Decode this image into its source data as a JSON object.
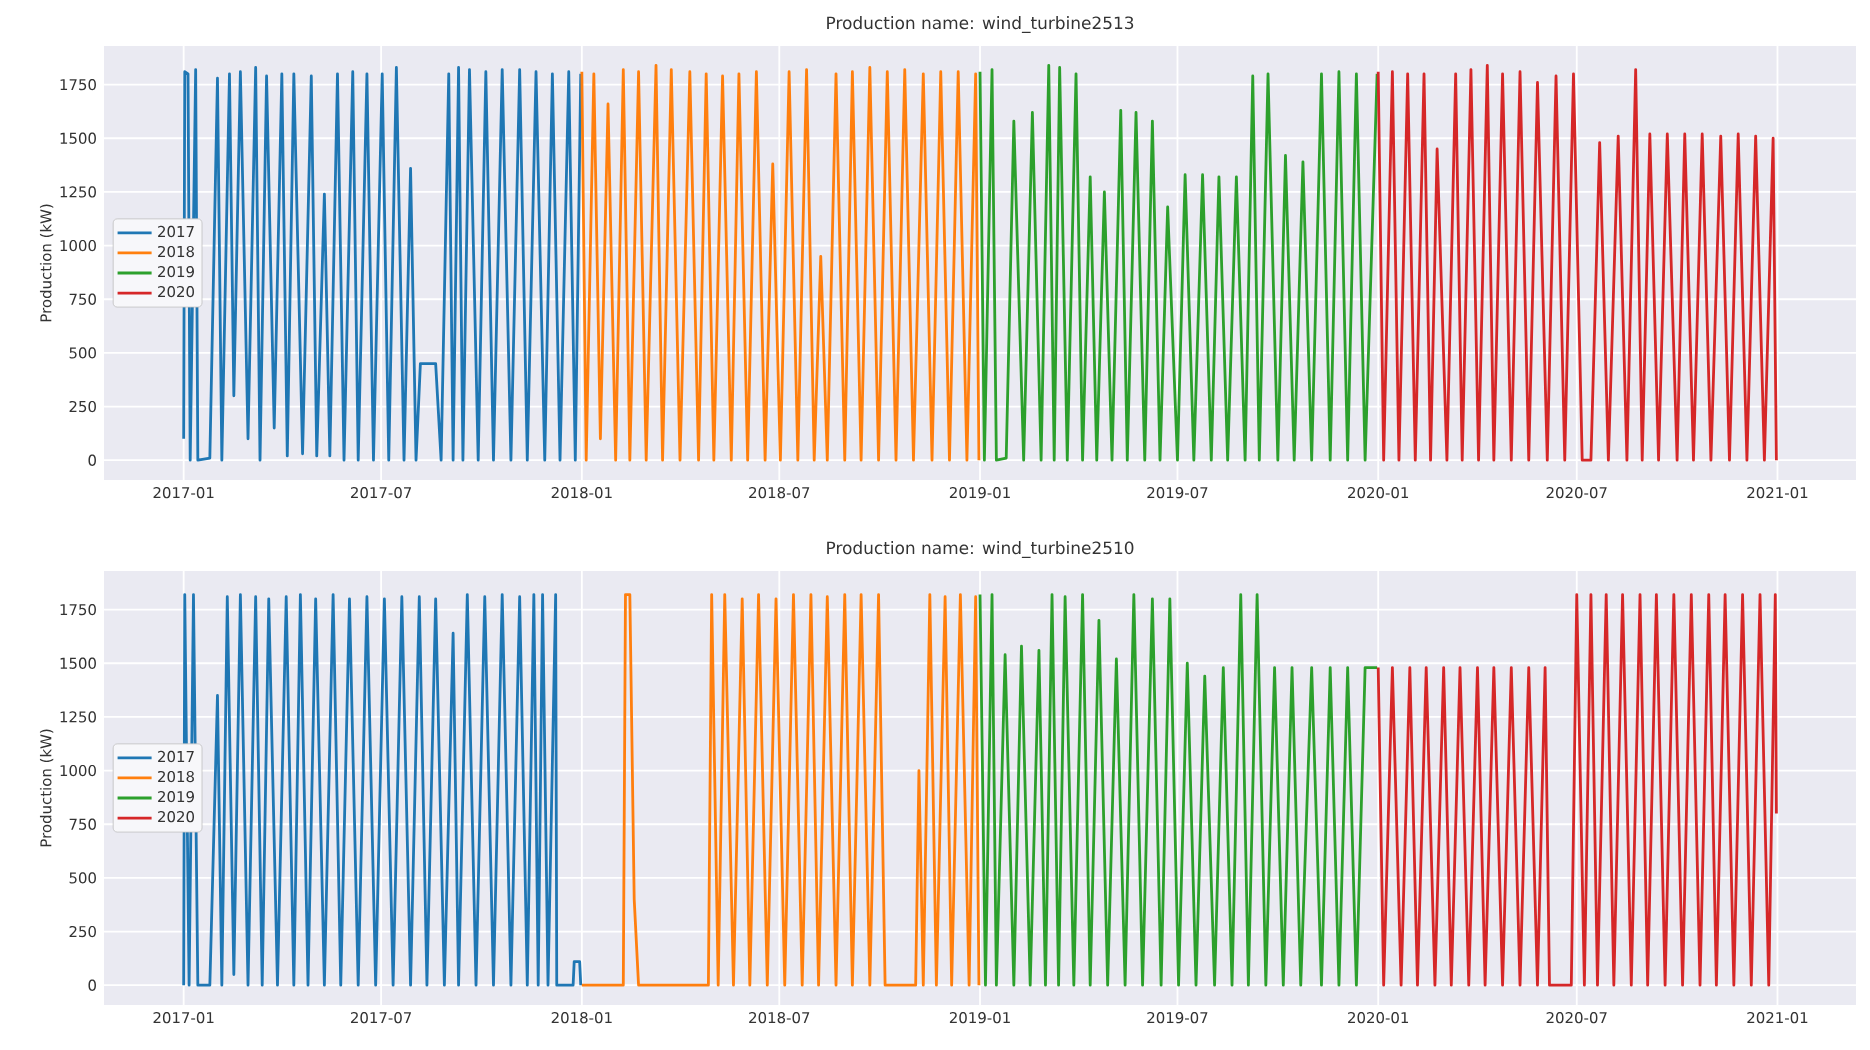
{
  "chart_data": [
    {
      "type": "line",
      "title": "Production name: wind_turbine2513",
      "ylabel": "Production (kW)",
      "grid": true,
      "legend": "left",
      "xlim": [
        "2016-10-20",
        "2021-03-14"
      ],
      "ylim": [
        -92,
        1930
      ],
      "xticks": [
        "2017-01",
        "2017-07",
        "2018-01",
        "2018-07",
        "2019-01",
        "2019-07",
        "2020-01",
        "2020-07",
        "2021-01"
      ],
      "yticks": [
        0,
        250,
        500,
        750,
        1000,
        1250,
        1500,
        1750
      ],
      "series": [
        {
          "name": "2017",
          "color": "#1f77b4",
          "x": [
            "2017-01-01",
            "2017-01-02",
            "2017-01-05",
            "2017-01-07",
            "2017-01-12",
            "2017-01-14",
            "2017-01-25",
            "2017-02-01",
            "2017-02-05",
            "2017-02-12",
            "2017-02-16",
            "2017-02-22",
            "2017-03-01",
            "2017-03-08",
            "2017-03-12",
            "2017-03-18",
            "2017-03-25",
            "2017-04-01",
            "2017-04-06",
            "2017-04-12",
            "2017-04-20",
            "2017-04-28",
            "2017-05-03",
            "2017-05-10",
            "2017-05-15",
            "2017-05-22",
            "2017-05-28",
            "2017-06-05",
            "2017-06-10",
            "2017-06-18",
            "2017-06-24",
            "2017-07-02",
            "2017-07-08",
            "2017-07-15",
            "2017-07-22",
            "2017-07-28",
            "2017-08-02",
            "2017-08-06",
            "2017-08-20",
            "2017-08-25",
            "2017-09-01",
            "2017-09-05",
            "2017-09-10",
            "2017-09-14",
            "2017-09-20",
            "2017-09-28",
            "2017-10-05",
            "2017-10-12",
            "2017-10-20",
            "2017-10-28",
            "2017-11-05",
            "2017-11-12",
            "2017-11-20",
            "2017-11-28",
            "2017-12-05",
            "2017-12-12",
            "2017-12-20",
            "2017-12-26",
            "2017-12-31"
          ],
          "values": [
            100,
            1810,
            1800,
            0,
            1820,
            0,
            10,
            1780,
            0,
            1800,
            300,
            1810,
            100,
            1830,
            0,
            1790,
            150,
            1800,
            20,
            1800,
            30,
            1790,
            20,
            1240,
            20,
            1800,
            0,
            1810,
            0,
            1800,
            0,
            1800,
            0,
            1830,
            0,
            1360,
            0,
            450,
            450,
            0,
            1800,
            0,
            1830,
            0,
            1820,
            0,
            1810,
            0,
            1820,
            0,
            1820,
            0,
            1810,
            0,
            1800,
            0,
            1810,
            0,
            1800
          ]
        },
        {
          "name": "2018",
          "color": "#ff7f0e",
          "x": [
            "2018-01-01",
            "2018-01-05",
            "2018-01-12",
            "2018-01-18",
            "2018-01-25",
            "2018-02-01",
            "2018-02-08",
            "2018-02-14",
            "2018-02-22",
            "2018-03-01",
            "2018-03-10",
            "2018-03-16",
            "2018-03-24",
            "2018-04-01",
            "2018-04-10",
            "2018-04-18",
            "2018-04-25",
            "2018-05-02",
            "2018-05-10",
            "2018-05-18",
            "2018-05-25",
            "2018-06-02",
            "2018-06-10",
            "2018-06-18",
            "2018-06-25",
            "2018-07-02",
            "2018-07-10",
            "2018-07-18",
            "2018-07-26",
            "2018-08-02",
            "2018-08-08",
            "2018-08-14",
            "2018-08-22",
            "2018-08-30",
            "2018-09-06",
            "2018-09-14",
            "2018-09-22",
            "2018-09-30",
            "2018-10-08",
            "2018-10-16",
            "2018-10-24",
            "2018-11-01",
            "2018-11-10",
            "2018-11-18",
            "2018-11-26",
            "2018-12-04",
            "2018-12-12",
            "2018-12-20",
            "2018-12-28",
            "2018-12-31"
          ],
          "values": [
            1810,
            0,
            1800,
            100,
            1660,
            0,
            1820,
            0,
            1810,
            0,
            1840,
            0,
            1820,
            0,
            1810,
            0,
            1800,
            0,
            1790,
            0,
            1800,
            0,
            1810,
            0,
            1380,
            0,
            1810,
            0,
            1820,
            0,
            950,
            0,
            1800,
            0,
            1810,
            0,
            1830,
            0,
            1810,
            0,
            1820,
            0,
            1800,
            0,
            1810,
            0,
            1810,
            0,
            1800,
            0
          ]
        },
        {
          "name": "2019",
          "color": "#2ca02c",
          "x": [
            "2019-01-01",
            "2019-01-05",
            "2019-01-12",
            "2019-01-16",
            "2019-01-25",
            "2019-02-01",
            "2019-02-10",
            "2019-02-18",
            "2019-02-26",
            "2019-03-05",
            "2019-03-10",
            "2019-03-15",
            "2019-03-22",
            "2019-03-30",
            "2019-04-05",
            "2019-04-12",
            "2019-04-18",
            "2019-04-25",
            "2019-05-02",
            "2019-05-10",
            "2019-05-16",
            "2019-05-24",
            "2019-06-01",
            "2019-06-08",
            "2019-06-15",
            "2019-06-22",
            "2019-07-01",
            "2019-07-08",
            "2019-07-16",
            "2019-07-24",
            "2019-08-01",
            "2019-08-08",
            "2019-08-16",
            "2019-08-24",
            "2019-09-01",
            "2019-09-08",
            "2019-09-14",
            "2019-09-22",
            "2019-10-01",
            "2019-10-08",
            "2019-10-16",
            "2019-10-24",
            "2019-11-01",
            "2019-11-10",
            "2019-11-18",
            "2019-11-26",
            "2019-12-04",
            "2019-12-12",
            "2019-12-20",
            "2019-12-31"
          ],
          "values": [
            1810,
            0,
            1820,
            0,
            10,
            1580,
            0,
            1620,
            0,
            1840,
            0,
            1830,
            0,
            1800,
            0,
            1320,
            0,
            1250,
            0,
            1630,
            0,
            1620,
            0,
            1580,
            0,
            1180,
            0,
            1330,
            0,
            1330,
            0,
            1320,
            0,
            1320,
            0,
            1790,
            0,
            1800,
            0,
            1420,
            0,
            1390,
            0,
            1800,
            0,
            1810,
            0,
            1800,
            0,
            1800
          ]
        },
        {
          "name": "2020",
          "color": "#d62728",
          "x": [
            "2020-01-01",
            "2020-01-06",
            "2020-01-14",
            "2020-01-20",
            "2020-01-28",
            "2020-02-04",
            "2020-02-12",
            "2020-02-18",
            "2020-02-24",
            "2020-03-04",
            "2020-03-12",
            "2020-03-18",
            "2020-03-26",
            "2020-04-02",
            "2020-04-10",
            "2020-04-16",
            "2020-04-24",
            "2020-05-02",
            "2020-05-10",
            "2020-05-18",
            "2020-05-26",
            "2020-06-04",
            "2020-06-12",
            "2020-06-20",
            "2020-06-28",
            "2020-07-06",
            "2020-07-14",
            "2020-07-22",
            "2020-07-30",
            "2020-08-08",
            "2020-08-16",
            "2020-08-24",
            "2020-08-30",
            "2020-09-06",
            "2020-09-14",
            "2020-09-22",
            "2020-10-01",
            "2020-10-08",
            "2020-10-16",
            "2020-10-24",
            "2020-11-01",
            "2020-11-10",
            "2020-11-18",
            "2020-11-26",
            "2020-12-04",
            "2020-12-12",
            "2020-12-20",
            "2020-12-28",
            "2020-12-31"
          ],
          "values": [
            1810,
            0,
            1810,
            0,
            1800,
            0,
            1800,
            0,
            1450,
            0,
            1800,
            0,
            1820,
            0,
            1840,
            0,
            1800,
            0,
            1810,
            0,
            1760,
            0,
            1790,
            0,
            1800,
            0,
            0,
            1480,
            0,
            1510,
            0,
            1820,
            0,
            1520,
            0,
            1520,
            0,
            1520,
            0,
            1520,
            0,
            1510,
            0,
            1520,
            0,
            1510,
            0,
            1500,
            0
          ]
        }
      ]
    },
    {
      "type": "line",
      "title": "Production name: wind_turbine2510",
      "ylabel": "Production (kW)",
      "grid": true,
      "legend": "left",
      "xlim": [
        "2016-10-20",
        "2021-03-14"
      ],
      "ylim": [
        -92,
        1930
      ],
      "xticks": [
        "2017-01",
        "2017-07",
        "2018-01",
        "2018-07",
        "2019-01",
        "2019-07",
        "2020-01",
        "2020-07",
        "2021-01"
      ],
      "yticks": [
        0,
        250,
        500,
        750,
        1000,
        1250,
        1500,
        1750
      ],
      "series": [
        {
          "name": "2017",
          "color": "#1f77b4",
          "x": [
            "2017-01-01",
            "2017-01-02",
            "2017-01-06",
            "2017-01-10",
            "2017-01-14",
            "2017-01-25",
            "2017-02-01",
            "2017-02-05",
            "2017-02-10",
            "2017-02-16",
            "2017-02-22",
            "2017-03-01",
            "2017-03-08",
            "2017-03-14",
            "2017-03-20",
            "2017-03-28",
            "2017-04-05",
            "2017-04-12",
            "2017-04-18",
            "2017-04-25",
            "2017-05-02",
            "2017-05-10",
            "2017-05-18",
            "2017-05-25",
            "2017-06-02",
            "2017-06-10",
            "2017-06-18",
            "2017-06-26",
            "2017-07-04",
            "2017-07-12",
            "2017-07-20",
            "2017-07-28",
            "2017-08-05",
            "2017-08-12",
            "2017-08-20",
            "2017-08-28",
            "2017-09-05",
            "2017-09-10",
            "2017-09-18",
            "2017-09-26",
            "2017-10-04",
            "2017-10-12",
            "2017-10-20",
            "2017-10-28",
            "2017-11-05",
            "2017-11-12",
            "2017-11-18",
            "2017-11-22",
            "2017-11-26",
            "2017-12-01",
            "2017-12-08",
            "2017-12-09",
            "2017-12-24",
            "2017-12-25",
            "2017-12-30",
            "2017-12-31"
          ],
          "values": [
            0,
            1820,
            0,
            1820,
            0,
            0,
            1350,
            0,
            1810,
            50,
            1820,
            0,
            1810,
            0,
            1800,
            0,
            1810,
            0,
            1820,
            0,
            1800,
            0,
            1820,
            0,
            1800,
            0,
            1810,
            0,
            1800,
            0,
            1810,
            0,
            1810,
            0,
            1800,
            0,
            1640,
            0,
            1820,
            0,
            1810,
            0,
            1820,
            0,
            1810,
            0,
            1820,
            0,
            1820,
            0,
            1820,
            0,
            0,
            110,
            110,
            0
          ]
        },
        {
          "name": "2018",
          "color": "#ff7f0e",
          "x": [
            "2018-01-01",
            "2018-02-08",
            "2018-02-10",
            "2018-02-14",
            "2018-02-18",
            "2018-02-22",
            "2018-04-27",
            "2018-04-30",
            "2018-05-06",
            "2018-05-12",
            "2018-05-20",
            "2018-05-28",
            "2018-06-04",
            "2018-06-12",
            "2018-06-20",
            "2018-06-28",
            "2018-07-06",
            "2018-07-14",
            "2018-07-22",
            "2018-07-30",
            "2018-08-06",
            "2018-08-14",
            "2018-08-22",
            "2018-08-30",
            "2018-09-06",
            "2018-09-14",
            "2018-09-22",
            "2018-09-30",
            "2018-10-06",
            "2018-11-03",
            "2018-11-06",
            "2018-11-10",
            "2018-11-16",
            "2018-11-22",
            "2018-11-30",
            "2018-12-06",
            "2018-12-14",
            "2018-12-22",
            "2018-12-28",
            "2018-12-31"
          ],
          "values": [
            0,
            0,
            1820,
            1820,
            400,
            0,
            0,
            1820,
            0,
            1820,
            0,
            1800,
            0,
            1820,
            0,
            1800,
            0,
            1820,
            0,
            1820,
            0,
            1810,
            0,
            1820,
            0,
            1820,
            0,
            1820,
            0,
            0,
            1000,
            0,
            1820,
            0,
            1810,
            0,
            1820,
            0,
            1810,
            0
          ]
        },
        {
          "name": "2019",
          "color": "#2ca02c",
          "x": [
            "2019-01-01",
            "2019-01-06",
            "2019-01-12",
            "2019-01-16",
            "2019-01-24",
            "2019-02-01",
            "2019-02-08",
            "2019-02-16",
            "2019-02-24",
            "2019-03-02",
            "2019-03-08",
            "2019-03-14",
            "2019-03-20",
            "2019-03-28",
            "2019-04-05",
            "2019-04-12",
            "2019-04-20",
            "2019-04-28",
            "2019-05-06",
            "2019-05-14",
            "2019-05-22",
            "2019-05-30",
            "2019-06-08",
            "2019-06-16",
            "2019-06-24",
            "2019-07-02",
            "2019-07-10",
            "2019-07-18",
            "2019-07-26",
            "2019-08-04",
            "2019-08-12",
            "2019-08-20",
            "2019-08-28",
            "2019-09-04",
            "2019-09-12",
            "2019-09-20",
            "2019-09-28",
            "2019-10-06",
            "2019-10-14",
            "2019-10-22",
            "2019-11-01",
            "2019-11-10",
            "2019-11-18",
            "2019-11-26",
            "2019-12-04",
            "2019-12-12",
            "2019-12-20",
            "2019-12-31"
          ],
          "values": [
            1820,
            0,
            1820,
            0,
            1540,
            0,
            1580,
            0,
            1560,
            0,
            1820,
            0,
            1810,
            0,
            1820,
            0,
            1700,
            0,
            1520,
            0,
            1820,
            0,
            1800,
            0,
            1800,
            0,
            1500,
            0,
            1440,
            0,
            1480,
            0,
            1820,
            0,
            1820,
            0,
            1480,
            0,
            1480,
            0,
            1480,
            0,
            1480,
            0,
            1480,
            0,
            1480,
            1480
          ]
        },
        {
          "name": "2020",
          "color": "#d62728",
          "x": [
            "2020-01-01",
            "2020-01-06",
            "2020-01-14",
            "2020-01-22",
            "2020-01-30",
            "2020-02-06",
            "2020-02-14",
            "2020-02-22",
            "2020-03-01",
            "2020-03-08",
            "2020-03-16",
            "2020-03-24",
            "2020-04-01",
            "2020-04-08",
            "2020-04-16",
            "2020-04-24",
            "2020-05-02",
            "2020-05-10",
            "2020-05-18",
            "2020-05-26",
            "2020-06-02",
            "2020-06-06",
            "2020-06-26",
            "2020-07-01",
            "2020-07-08",
            "2020-07-14",
            "2020-07-20",
            "2020-07-28",
            "2020-08-04",
            "2020-08-12",
            "2020-08-20",
            "2020-08-28",
            "2020-09-04",
            "2020-09-12",
            "2020-09-20",
            "2020-09-28",
            "2020-10-06",
            "2020-10-14",
            "2020-10-22",
            "2020-10-30",
            "2020-11-06",
            "2020-11-14",
            "2020-11-22",
            "2020-11-30",
            "2020-12-08",
            "2020-12-16",
            "2020-12-24",
            "2020-12-30",
            "2020-12-31"
          ],
          "values": [
            1480,
            0,
            1480,
            0,
            1480,
            0,
            1480,
            0,
            1480,
            0,
            1480,
            0,
            1480,
            0,
            1480,
            0,
            1480,
            0,
            1480,
            0,
            1480,
            0,
            0,
            1820,
            0,
            1820,
            0,
            1820,
            0,
            1820,
            0,
            1820,
            0,
            1820,
            0,
            1820,
            0,
            1820,
            0,
            1820,
            0,
            1820,
            0,
            1820,
            0,
            1820,
            0,
            1820,
            800
          ]
        }
      ]
    }
  ]
}
